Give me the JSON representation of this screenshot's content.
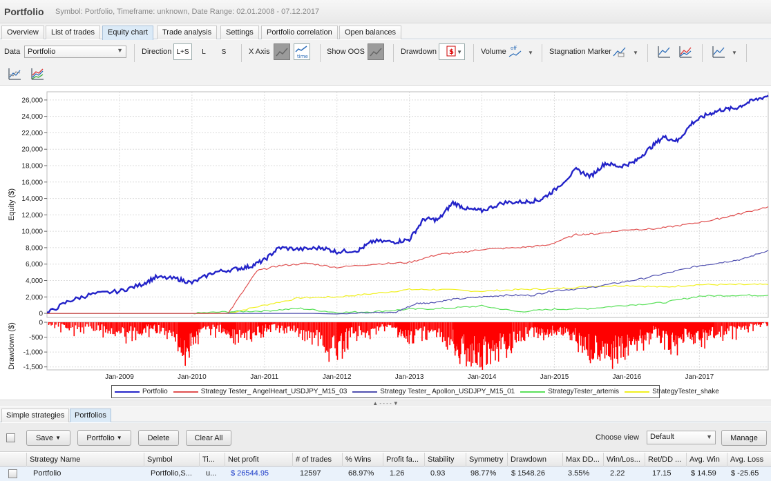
{
  "window": {
    "title": "Portfolio",
    "subtitle": "Symbol: Portfolio, Timeframe: unknown, Date Range: 02.01.2008 - 07.12.2017"
  },
  "tabs": [
    {
      "label": "Overview"
    },
    {
      "label": "List of trades"
    },
    {
      "label": "Equity chart",
      "active": true
    },
    {
      "label": "Trade analysis"
    },
    {
      "label": "Settings"
    },
    {
      "label": "Portfolio correlation"
    },
    {
      "label": "Open balances"
    }
  ],
  "toolbar": {
    "data_label": "Data",
    "data_value": "Portfolio",
    "direction_label": "Direction",
    "direction_options": [
      "L+S",
      "L",
      "S"
    ],
    "xaxis_label": "X Axis",
    "xaxis_time": "time",
    "show_oos_label": "Show OOS",
    "drawdown_label": "Drawdown",
    "drawdown_icon_text": "$",
    "volume_label": "Volume",
    "volume_icon_text": "off",
    "stagnation_label": "Stagnation Marker",
    "icons": [
      "equity-chart-icon",
      "multi-line-chart-icon",
      "line-chart-icon",
      "compare-icon",
      "color-lines-icon"
    ]
  },
  "chart_data": {
    "type": "line",
    "panels": [
      "equity",
      "drawdown"
    ],
    "ylabel": "Equity ($)",
    "ylabel2": "Drawdown ($)",
    "ylim": [
      -500,
      27000
    ],
    "yticks": [
      0,
      2000,
      4000,
      6000,
      8000,
      10000,
      12000,
      14000,
      16000,
      18000,
      20000,
      22000,
      24000,
      26000
    ],
    "ytick_labels": [
      "0",
      "2,000",
      "4,000",
      "6,000",
      "8,000",
      "10,000",
      "12,000",
      "14,000",
      "16,000",
      "18,000",
      "20,000",
      "22,000",
      "24,000",
      "26,000"
    ],
    "ylim2": [
      -1600,
      0
    ],
    "yticks2": [
      0,
      -500,
      -1000,
      -1500
    ],
    "ytick2_labels": [
      "0",
      "-500",
      "-1,000",
      "-1,500"
    ],
    "xlim": [
      2008.0,
      2017.95
    ],
    "xticks": [
      2009,
      2010,
      2011,
      2012,
      2013,
      2014,
      2015,
      2016,
      2017
    ],
    "xtick_labels": [
      "Jan-2009",
      "Jan-2010",
      "Jan-2011",
      "Jan-2012",
      "Jan-2013",
      "Jan-2014",
      "Jan-2015",
      "Jan-2016",
      "Jan-2017"
    ],
    "grid": true,
    "legend_position": "bottom",
    "series": [
      {
        "name": "Portfolio",
        "color": "#2323c8",
        "x": [
          2008.0,
          2008.3,
          2008.6,
          2009.0,
          2009.3,
          2009.5,
          2009.8,
          2010.0,
          2010.3,
          2010.6,
          2010.8,
          2011.0,
          2011.2,
          2011.5,
          2011.8,
          2012.0,
          2012.3,
          2012.5,
          2012.8,
          2013.0,
          2013.2,
          2013.4,
          2013.6,
          2013.8,
          2014.0,
          2014.3,
          2014.6,
          2014.8,
          2015.0,
          2015.3,
          2015.5,
          2015.7,
          2015.9,
          2016.1,
          2016.3,
          2016.5,
          2016.7,
          2016.9,
          2017.1,
          2017.3,
          2017.5,
          2017.7,
          2017.95
        ],
        "y": [
          0,
          1500,
          2300,
          2700,
          3500,
          4400,
          4200,
          3700,
          5000,
          5400,
          5700,
          6500,
          8000,
          7800,
          8000,
          7500,
          7700,
          8800,
          8700,
          9000,
          11500,
          11400,
          13500,
          12700,
          12500,
          13500,
          13600,
          13800,
          15000,
          17500,
          16700,
          18300,
          17900,
          18400,
          20000,
          21500,
          21000,
          23200,
          24200,
          24800,
          25000,
          25800,
          26544.95
        ]
      },
      {
        "name": "Strategy Tester_ AngelHeart_USDJPY_M15_03",
        "color": "#e05050",
        "x": [
          2008.0,
          2010.5,
          2010.9,
          2011.2,
          2011.6,
          2012.0,
          2012.5,
          2013.0,
          2013.4,
          2013.7,
          2014.0,
          2014.5,
          2014.9,
          2015.3,
          2015.6,
          2016.0,
          2016.4,
          2016.8,
          2017.2,
          2017.5,
          2017.95
        ],
        "y": [
          0,
          0,
          5200,
          5800,
          6100,
          5600,
          6000,
          6200,
          7200,
          7400,
          7800,
          8000,
          8300,
          9600,
          9700,
          10200,
          10300,
          10800,
          11400,
          12000,
          13000
        ]
      },
      {
        "name": "Strategy Tester_ Apollon_USDJPY_M15_01",
        "color": "#5050b0",
        "x": [
          2008.0,
          2012.0,
          2012.8,
          2013.1,
          2013.3,
          2013.6,
          2014.0,
          2014.3,
          2014.7,
          2015.0,
          2015.4,
          2015.8,
          2016.2,
          2016.6,
          2017.0,
          2017.3,
          2017.6,
          2017.95
        ],
        "y": [
          0,
          0,
          100,
          1200,
          1300,
          1700,
          2000,
          2200,
          2200,
          2800,
          3000,
          3600,
          4200,
          5000,
          5800,
          6200,
          6600,
          7700
        ]
      },
      {
        "name": "StrategyTester_artemis",
        "color": "#5ae05a",
        "x": [
          2008.0,
          2010.0,
          2010.5,
          2011.0,
          2011.5,
          2012.0,
          2012.5,
          2013.0,
          2013.5,
          2014.0,
          2014.5,
          2015.0,
          2015.5,
          2016.0,
          2016.5,
          2017.0,
          2017.5,
          2017.95
        ],
        "y": [
          0,
          0,
          200,
          300,
          600,
          100,
          200,
          500,
          600,
          900,
          200,
          500,
          600,
          1000,
          1300,
          2100,
          2200,
          2200
        ]
      },
      {
        "name": "StrategyTester_shake",
        "color": "#f0f020",
        "x": [
          2008.0,
          2010.5,
          2011.0,
          2011.5,
          2012.0,
          2012.5,
          2013.0,
          2013.4,
          2014.0,
          2014.5,
          2015.0,
          2015.5,
          2016.0,
          2016.5,
          2017.0,
          2017.5,
          2017.95
        ],
        "y": [
          0,
          0,
          1000,
          1900,
          2000,
          2400,
          2900,
          2900,
          2700,
          2900,
          3000,
          3300,
          3400,
          3200,
          3500,
          3500,
          3500
        ]
      }
    ],
    "drawdown": {
      "name": "Drawdown",
      "color": "#ff0000",
      "x": [
        2008.0,
        2008.3,
        2008.7,
        2009.0,
        2009.3,
        2009.5,
        2009.8,
        2009.9,
        2010.1,
        2010.4,
        2010.6,
        2010.9,
        2011.1,
        2011.4,
        2011.7,
        2012.0,
        2012.2,
        2012.5,
        2012.8,
        2013.0,
        2013.3,
        2013.6,
        2013.7,
        2013.9,
        2014.0,
        2014.2,
        2014.4,
        2014.7,
        2014.9,
        2015.1,
        2015.3,
        2015.5,
        2015.7,
        2015.8,
        2016.0,
        2016.2,
        2016.4,
        2016.6,
        2016.8,
        2017.0,
        2017.2,
        2017.5,
        2017.8,
        2017.95
      ],
      "y": [
        0,
        -300,
        -250,
        -500,
        -400,
        -200,
        -900,
        -1200,
        -400,
        -300,
        -600,
        -500,
        -200,
        -400,
        -700,
        -1300,
        -500,
        -400,
        -200,
        -800,
        -400,
        -800,
        -1200,
        -1500,
        -1500,
        -1200,
        -900,
        -300,
        -500,
        -300,
        -700,
        -1200,
        -900,
        -1500,
        -1000,
        -700,
        -400,
        -1100,
        -500,
        -800,
        -500,
        -400,
        -100,
        0
      ]
    }
  },
  "legend": {
    "items": [
      "Portfolio",
      "Strategy Tester_ AngelHeart_USDJPY_M15_03",
      "Strategy Tester_ Apollon_USDJPY_M15_01",
      "StrategyTester_artemis",
      "StrategyTester_shake"
    ]
  },
  "bottom_tabs": [
    {
      "label": "Simple strategies"
    },
    {
      "label": "Portfolios",
      "active": true
    }
  ],
  "bottom_toolbar": {
    "save": "Save",
    "portfolio": "Portfolio",
    "delete": "Delete",
    "clear_all": "Clear All",
    "choose_view_label": "Choose view",
    "choose_view_value": "Default",
    "manage": "Manage"
  },
  "grid": {
    "headers": [
      "Strategy Name",
      "Symbol",
      "Ti...",
      "Net profit",
      "# of trades",
      "% Wins",
      "Profit fa...",
      "Stability",
      "Symmetry",
      "Drawdown",
      "Max DD...",
      "Win/Los...",
      "Ret/DD ...",
      "Avg. Win",
      "Avg. Loss"
    ],
    "rows": [
      [
        "Portfolio",
        "Portfolio,S...",
        "u...",
        "$ 26544.95",
        "12597",
        "68.97%",
        "1.26",
        "0.93",
        "98.77%",
        "$ 1548.26",
        "3.55%",
        "2.22",
        "17.15",
        "$ 14.59",
        "$ -25.65"
      ]
    ]
  }
}
